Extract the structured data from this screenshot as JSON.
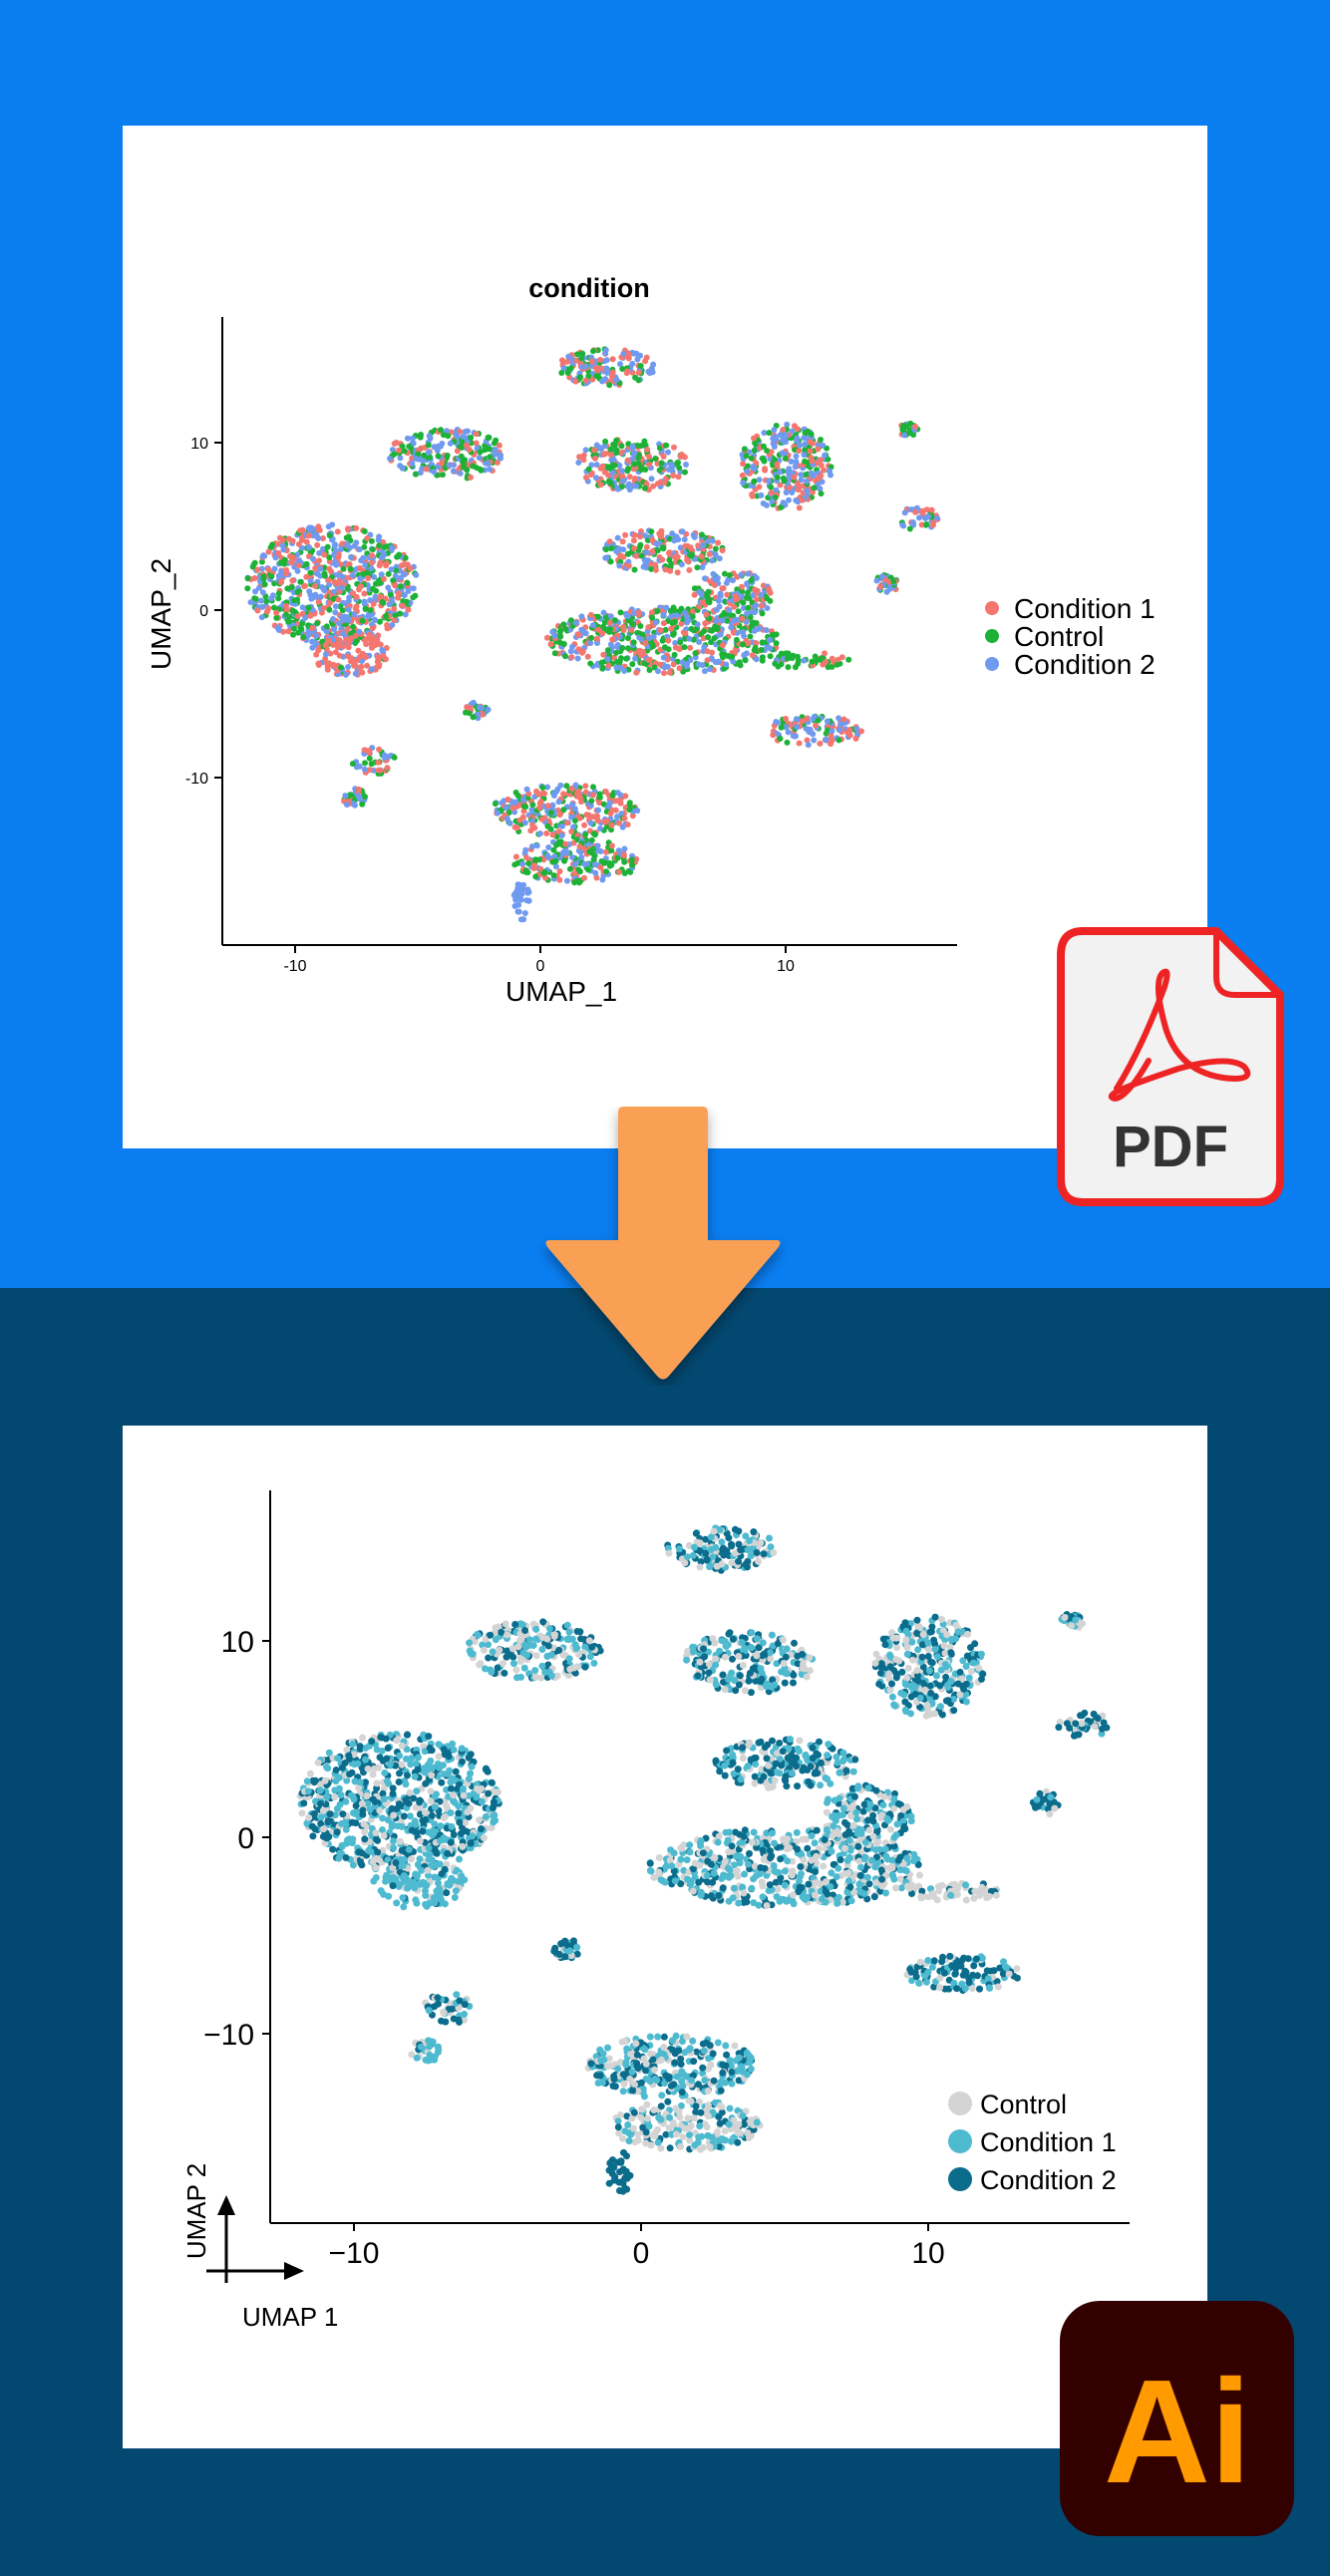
{
  "colors": {
    "top_bg": "#0a7df0",
    "bottom_bg": "#034870",
    "arrow": "#f9a055",
    "pdf_red": "#ee2424",
    "ai_bg": "#330000",
    "ai_orange": "#ff9a00"
  },
  "icons": {
    "pdf": "pdf-file-icon",
    "arrow": "arrow-down-icon",
    "illustrator": "adobe-illustrator-icon"
  },
  "pdf_badge": {
    "label": "PDF"
  },
  "ai_badge": {
    "label": "Ai"
  },
  "chart_data": [
    {
      "type": "scatter",
      "title": "condition",
      "xlabel": "UMAP_1",
      "ylabel": "UMAP_2",
      "xlim": [
        -13,
        17
      ],
      "ylim": [
        -20,
        17.5
      ],
      "x_ticks": [
        -10,
        0,
        10
      ],
      "y_ticks": [
        -10,
        0,
        10
      ],
      "tick_labels_x": [
        "-10",
        "0",
        "10"
      ],
      "tick_labels_y": [
        "-10",
        "0",
        "10"
      ],
      "grid": false,
      "legend_position": "right",
      "series": [
        {
          "name": "Condition 1",
          "color": "#f4766e"
        },
        {
          "name": "Control",
          "color": "#1db237"
        },
        {
          "name": "Condition 2",
          "color": "#6f9af0"
        }
      ],
      "clusters": [
        {
          "x": -8.5,
          "y": 1.5,
          "rx": 3.5,
          "ry": 3.6,
          "weights": [
            0.3,
            0.3,
            0.4
          ]
        },
        {
          "x": -7.8,
          "y": -2.6,
          "rx": 1.6,
          "ry": 1.3,
          "weights": [
            0.7,
            0.1,
            0.2
          ]
        },
        {
          "x": 2.7,
          "y": 14.5,
          "rx": 2.0,
          "ry": 1.1,
          "weights": [
            0.35,
            0.25,
            0.4
          ]
        },
        {
          "x": -3.8,
          "y": 9.3,
          "rx": 2.4,
          "ry": 1.5,
          "weights": [
            0.25,
            0.4,
            0.35
          ]
        },
        {
          "x": 3.7,
          "y": 8.7,
          "rx": 2.3,
          "ry": 1.6,
          "weights": [
            0.3,
            0.4,
            0.3
          ]
        },
        {
          "x": 10.0,
          "y": 8.5,
          "rx": 1.9,
          "ry": 2.6,
          "weights": [
            0.35,
            0.3,
            0.35
          ]
        },
        {
          "x": 15.4,
          "y": 5.5,
          "rx": 0.9,
          "ry": 0.7,
          "weights": [
            0.3,
            0.3,
            0.4
          ]
        },
        {
          "x": 15.0,
          "y": 10.8,
          "rx": 0.4,
          "ry": 0.4,
          "weights": [
            0.2,
            0.6,
            0.2
          ]
        },
        {
          "x": 14.1,
          "y": 1.5,
          "rx": 0.5,
          "ry": 0.6,
          "weights": [
            0.3,
            0.2,
            0.5
          ]
        },
        {
          "x": 5.0,
          "y": 3.5,
          "rx": 2.5,
          "ry": 1.3,
          "weights": [
            0.3,
            0.35,
            0.35
          ]
        },
        {
          "x": 5.0,
          "y": -1.8,
          "rx": 4.8,
          "ry": 2.0,
          "weights": [
            0.3,
            0.4,
            0.3
          ]
        },
        {
          "x": 7.8,
          "y": 0.8,
          "rx": 1.6,
          "ry": 1.6,
          "weights": [
            0.3,
            0.35,
            0.35
          ]
        },
        {
          "x": 10.8,
          "y": -3.0,
          "rx": 1.8,
          "ry": 0.5,
          "weights": [
            0.15,
            0.75,
            0.1
          ]
        },
        {
          "x": 11.2,
          "y": -7.2,
          "rx": 2.0,
          "ry": 0.9,
          "weights": [
            0.4,
            0.2,
            0.4
          ]
        },
        {
          "x": -2.6,
          "y": -6.0,
          "rx": 0.5,
          "ry": 0.5,
          "weights": [
            0.3,
            0.3,
            0.4
          ]
        },
        {
          "x": -6.8,
          "y": -9.0,
          "rx": 0.9,
          "ry": 0.8,
          "weights": [
            0.3,
            0.4,
            0.3
          ]
        },
        {
          "x": -7.6,
          "y": -11.2,
          "rx": 0.5,
          "ry": 0.6,
          "weights": [
            0.3,
            0.4,
            0.3
          ]
        },
        {
          "x": 1.0,
          "y": -12.0,
          "rx": 3.0,
          "ry": 1.6,
          "weights": [
            0.4,
            0.3,
            0.3
          ]
        },
        {
          "x": 1.5,
          "y": -15.0,
          "rx": 2.6,
          "ry": 1.3,
          "weights": [
            0.3,
            0.45,
            0.25
          ]
        },
        {
          "x": -0.8,
          "y": -17.5,
          "rx": 0.4,
          "ry": 1.2,
          "weights": [
            0.0,
            0.0,
            1.0
          ]
        }
      ]
    },
    {
      "type": "scatter",
      "title": "",
      "xlabel": "UMAP 1",
      "ylabel": "UMAP 2",
      "xlim": [
        -13,
        17
      ],
      "ylim": [
        -20,
        17.5
      ],
      "x_ticks": [
        -10,
        0,
        10
      ],
      "y_ticks": [
        -10,
        0,
        10
      ],
      "tick_labels_x": [
        "−10",
        "0",
        "10"
      ],
      "tick_labels_y": [
        "−10",
        "0",
        "10"
      ],
      "grid": false,
      "legend_position": "bottom-right",
      "series": [
        {
          "name": "Control",
          "color": "#d4d4d4"
        },
        {
          "name": "Condition 1",
          "color": "#4ebad0"
        },
        {
          "name": "Condition 2",
          "color": "#0b6c8c"
        }
      ],
      "clusters": [
        {
          "x": -8.5,
          "y": 1.5,
          "rx": 3.5,
          "ry": 3.6,
          "weights": [
            0.2,
            0.4,
            0.4
          ]
        },
        {
          "x": -7.8,
          "y": -2.6,
          "rx": 1.6,
          "ry": 1.3,
          "weights": [
            0.15,
            0.75,
            0.1
          ]
        },
        {
          "x": 2.7,
          "y": 14.5,
          "rx": 2.0,
          "ry": 1.1,
          "weights": [
            0.25,
            0.35,
            0.4
          ]
        },
        {
          "x": -3.8,
          "y": 9.3,
          "rx": 2.4,
          "ry": 1.5,
          "weights": [
            0.3,
            0.35,
            0.35
          ]
        },
        {
          "x": 3.7,
          "y": 8.7,
          "rx": 2.3,
          "ry": 1.6,
          "weights": [
            0.25,
            0.35,
            0.4
          ]
        },
        {
          "x": 10.0,
          "y": 8.5,
          "rx": 1.9,
          "ry": 2.6,
          "weights": [
            0.25,
            0.35,
            0.4
          ]
        },
        {
          "x": 15.4,
          "y": 5.5,
          "rx": 0.9,
          "ry": 0.7,
          "weights": [
            0.2,
            0.3,
            0.5
          ]
        },
        {
          "x": 15.0,
          "y": 10.8,
          "rx": 0.4,
          "ry": 0.4,
          "weights": [
            0.2,
            0.5,
            0.3
          ]
        },
        {
          "x": 14.1,
          "y": 1.5,
          "rx": 0.5,
          "ry": 0.6,
          "weights": [
            0.1,
            0.3,
            0.6
          ]
        },
        {
          "x": 5.0,
          "y": 3.5,
          "rx": 2.5,
          "ry": 1.3,
          "weights": [
            0.2,
            0.35,
            0.45
          ]
        },
        {
          "x": 5.0,
          "y": -1.8,
          "rx": 4.8,
          "ry": 2.0,
          "weights": [
            0.3,
            0.4,
            0.3
          ]
        },
        {
          "x": 7.8,
          "y": 0.8,
          "rx": 1.6,
          "ry": 1.6,
          "weights": [
            0.3,
            0.35,
            0.35
          ]
        },
        {
          "x": 10.8,
          "y": -3.0,
          "rx": 1.8,
          "ry": 0.5,
          "weights": [
            0.75,
            0.15,
            0.1
          ]
        },
        {
          "x": 11.2,
          "y": -7.2,
          "rx": 2.0,
          "ry": 0.9,
          "weights": [
            0.1,
            0.3,
            0.6
          ]
        },
        {
          "x": -2.6,
          "y": -6.0,
          "rx": 0.5,
          "ry": 0.5,
          "weights": [
            0.1,
            0.3,
            0.6
          ]
        },
        {
          "x": -6.8,
          "y": -9.0,
          "rx": 0.9,
          "ry": 0.8,
          "weights": [
            0.2,
            0.4,
            0.4
          ]
        },
        {
          "x": -7.6,
          "y": -11.2,
          "rx": 0.5,
          "ry": 0.6,
          "weights": [
            0.3,
            0.5,
            0.2
          ]
        },
        {
          "x": 1.0,
          "y": -12.0,
          "rx": 3.0,
          "ry": 1.6,
          "weights": [
            0.2,
            0.4,
            0.4
          ]
        },
        {
          "x": 1.5,
          "y": -15.0,
          "rx": 2.6,
          "ry": 1.3,
          "weights": [
            0.45,
            0.35,
            0.2
          ]
        },
        {
          "x": -0.8,
          "y": -17.5,
          "rx": 0.4,
          "ry": 1.2,
          "weights": [
            0.0,
            0.0,
            1.0
          ]
        }
      ]
    }
  ]
}
